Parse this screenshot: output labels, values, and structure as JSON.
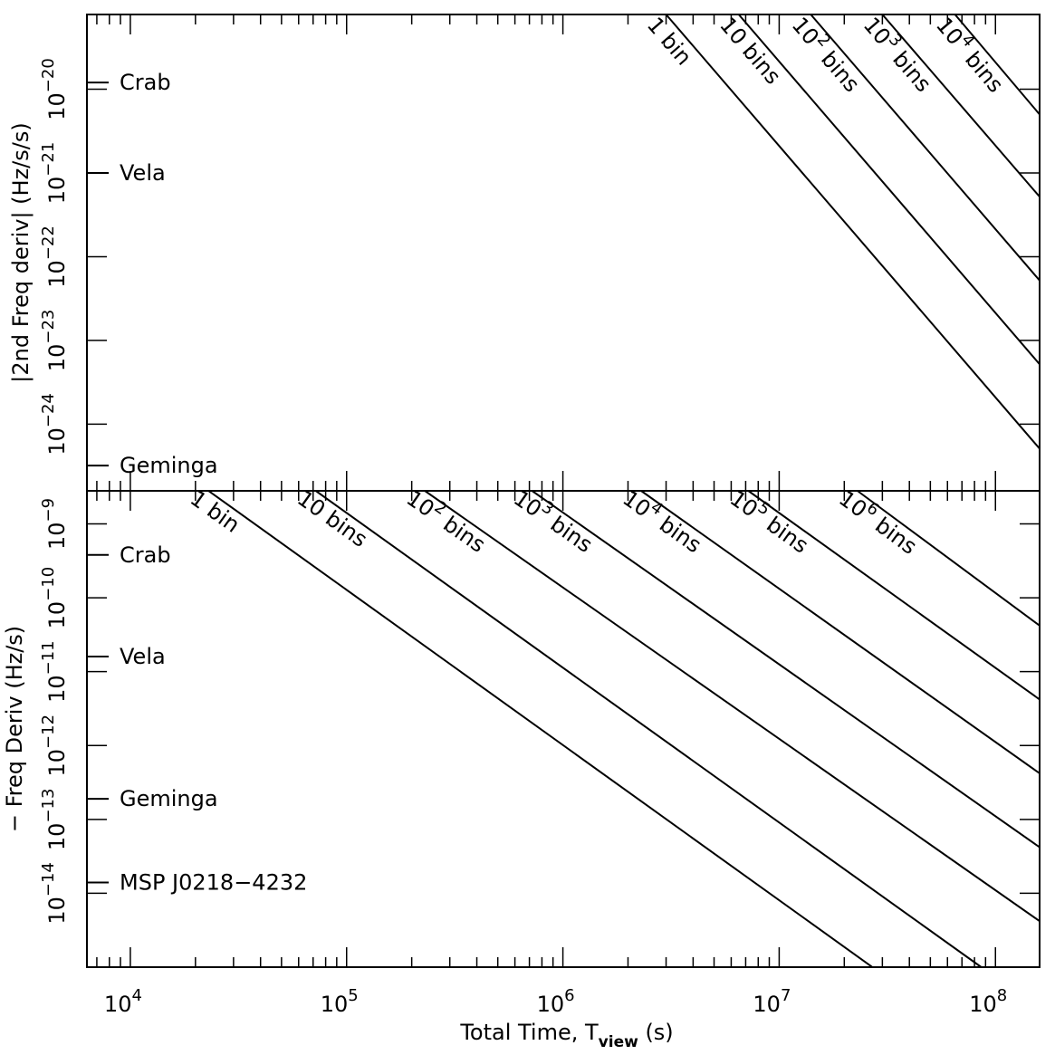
{
  "chart_data": [
    {
      "panel": "top",
      "type": "line",
      "title": "",
      "ylabel": "|2nd Freq deriv| (Hz/s/s)",
      "xlabel": "",
      "x_scale": "log",
      "y_scale": "log",
      "xlim": [
        6300,
        160000000
      ],
      "ylim": [
        1.6e-25,
        7.8e-20
      ],
      "y_ticks": [
        {
          "value": 1e-20,
          "label": "10",
          "exp": "−20"
        },
        {
          "value": 1e-21,
          "label": "10",
          "exp": "−21"
        },
        {
          "value": 1e-22,
          "label": "10",
          "exp": "−22"
        },
        {
          "value": 1e-23,
          "label": "10",
          "exp": "−23"
        },
        {
          "value": 1e-24,
          "label": "10",
          "exp": "−24"
        }
      ],
      "markers": [
        {
          "name": "Crab",
          "value": 1.2e-20
        },
        {
          "name": "Vela",
          "value": 1e-21
        },
        {
          "name": "Geminga",
          "value": 3.2e-25
        }
      ],
      "series": [
        {
          "label_main": "1 bin",
          "label_pre": "1 bin",
          "label_sup": "",
          "label_post": "",
          "points": [
            [
              3000000,
              7.8e-20
            ],
            [
              160000000,
              5.1e-25
            ]
          ]
        },
        {
          "label_main": "10 bins",
          "label_pre": "10 bins",
          "label_sup": "",
          "label_post": "",
          "points": [
            [
              6500000,
              7.8e-20
            ],
            [
              160000000,
              5.2e-24
            ]
          ]
        },
        {
          "label_main": "10² bins",
          "label_pre": "10",
          "label_sup": "2",
          "label_post": " bins",
          "points": [
            [
              14000000,
              7.8e-20
            ],
            [
              160000000,
              5.2e-23
            ]
          ]
        },
        {
          "label_main": "10³ bins",
          "label_pre": "10",
          "label_sup": "3",
          "label_post": " bins",
          "points": [
            [
              30000000,
              7.8e-20
            ],
            [
              160000000,
              5.2e-22
            ]
          ]
        },
        {
          "label_main": "10⁴ bins",
          "label_pre": "10",
          "label_sup": "4",
          "label_post": " bins",
          "points": [
            [
              65000000,
              7.8e-20
            ],
            [
              160000000,
              5e-21
            ]
          ]
        }
      ]
    },
    {
      "panel": "bottom",
      "type": "line",
      "title": "",
      "ylabel": "− Freq Deriv (Hz/s)",
      "xlabel_pre": "Total Time, T",
      "xlabel_sub": "view",
      "xlabel_post": " (s)",
      "x_scale": "log",
      "y_scale": "log",
      "xlim": [
        6300,
        160000000
      ],
      "ylim": [
        1e-15,
        2.8e-09
      ],
      "x_ticks": [
        {
          "value": 10000,
          "label": "10",
          "exp": "4"
        },
        {
          "value": 100000,
          "label": "10",
          "exp": "5"
        },
        {
          "value": 1000000,
          "label": "10",
          "exp": "6"
        },
        {
          "value": 10000000,
          "label": "10",
          "exp": "7"
        },
        {
          "value": 100000000,
          "label": "10",
          "exp": "8"
        }
      ],
      "y_ticks": [
        {
          "value": 1e-09,
          "label": "10",
          "exp": "−9"
        },
        {
          "value": 1e-10,
          "label": "10",
          "exp": "−10"
        },
        {
          "value": 1e-11,
          "label": "10",
          "exp": "−11"
        },
        {
          "value": 1e-12,
          "label": "10",
          "exp": "−12"
        },
        {
          "value": 1e-13,
          "label": "10",
          "exp": "−13"
        },
        {
          "value": 1e-14,
          "label": "10",
          "exp": "−14"
        }
      ],
      "markers": [
        {
          "name": "Crab",
          "value": 3.8e-10
        },
        {
          "name": "Vela",
          "value": 1.6e-11
        },
        {
          "name": "Geminga",
          "value": 1.9e-13
        },
        {
          "name": "MSP J0218−4232",
          "value": 1.4e-14
        }
      ],
      "series": [
        {
          "label_main": "1 bin",
          "label_pre": "1 bin",
          "label_sup": "",
          "label_post": "",
          "points": [
            [
              23000,
              2.8e-09
            ],
            [
              27000000,
              1e-15
            ]
          ]
        },
        {
          "label_main": "10 bins",
          "label_pre": "10 bins",
          "label_sup": "",
          "label_post": "",
          "points": [
            [
              72000,
              2.8e-09
            ],
            [
              86000000,
              1e-15
            ]
          ]
        },
        {
          "label_main": "10² bins",
          "label_pre": "10",
          "label_sup": "2",
          "label_post": " bins",
          "points": [
            [
              230000,
              2.8e-09
            ],
            [
              160000000,
              4.2e-15
            ]
          ]
        },
        {
          "label_main": "10³ bins",
          "label_pre": "10",
          "label_sup": "3",
          "label_post": " bins",
          "points": [
            [
              720000,
              2.8e-09
            ],
            [
              160000000,
              4.2e-14
            ]
          ]
        },
        {
          "label_main": "10⁴ bins",
          "label_pre": "10",
          "label_sup": "4",
          "label_post": " bins",
          "points": [
            [
              2300000,
              2.8e-09
            ],
            [
              160000000,
              4.2e-13
            ]
          ]
        },
        {
          "label_main": "10⁵ bins",
          "label_pre": "10",
          "label_sup": "5",
          "label_post": " bins",
          "points": [
            [
              7200000,
              2.8e-09
            ],
            [
              160000000,
              4.2e-12
            ]
          ]
        },
        {
          "label_main": "10⁶ bins",
          "label_pre": "10",
          "label_sup": "6",
          "label_post": " bins",
          "points": [
            [
              23000000,
              2.8e-09
            ],
            [
              160000000,
              4.2e-11
            ]
          ]
        }
      ]
    }
  ]
}
